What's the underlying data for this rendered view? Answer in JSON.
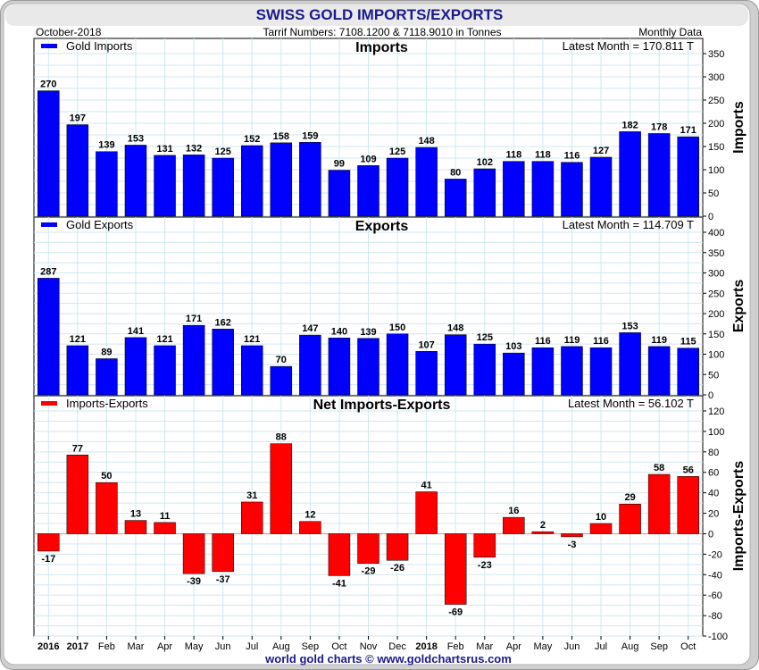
{
  "header": {
    "title": "SWISS GOLD IMPORTS/EXPORTS",
    "date": "October-2018",
    "subtitle": "Tarrif Numbers: 7108.1200 & 7118.9010 in Tonnes",
    "frequency": "Monthly Data"
  },
  "footer": {
    "credit": "world gold charts © www.goldchartsrus.com"
  },
  "colors": {
    "imports": "#0000ff",
    "exports": "#0000ff",
    "net": "#ff0000",
    "title": "#1a1a8c",
    "frame": "#c8c8c8"
  },
  "x_tick_labels": [
    "2016",
    "2017",
    "Feb",
    "Mar",
    "Apr",
    "May",
    "Jun",
    "Jul",
    "Aug",
    "Sep",
    "Oct",
    "Nov",
    "Dec",
    "2018",
    "Feb",
    "Mar",
    "Apr",
    "May",
    "Jun",
    "Jul",
    "Aug",
    "Sep",
    "Oct"
  ],
  "x_tick_bold": [
    true,
    true,
    false,
    false,
    false,
    false,
    false,
    false,
    false,
    false,
    false,
    false,
    false,
    true,
    false,
    false,
    false,
    false,
    false,
    false,
    false,
    false,
    false
  ],
  "chart_data": [
    {
      "type": "bar",
      "title": "Imports",
      "legend": "Gold Imports",
      "legend_position": "top-left",
      "latest": "Latest Month = 170.811 T",
      "ylabel": "Imports",
      "ylim": [
        0,
        350
      ],
      "yticks": [
        0,
        50,
        100,
        150,
        200,
        250,
        300,
        350
      ],
      "grid": true,
      "values": [
        270,
        197,
        139,
        153,
        131,
        132,
        125,
        152,
        158,
        159,
        99,
        109,
        125,
        148,
        80,
        102,
        118,
        118,
        116,
        127,
        182,
        178,
        171
      ],
      "labels": [
        "270",
        "197",
        "139",
        "153",
        "131",
        "132",
        "125",
        "152",
        "158",
        "159",
        "99",
        "109",
        "125",
        "148",
        "80",
        "102",
        "118",
        "118",
        "116",
        "127",
        "182",
        "178",
        "171"
      ]
    },
    {
      "type": "bar",
      "title": "Exports",
      "legend": "Gold Exports",
      "legend_position": "top-left",
      "latest": "Latest Month = 114.709 T",
      "ylabel": "Exports",
      "ylim": [
        0,
        400
      ],
      "yticks": [
        0,
        50,
        100,
        150,
        200,
        250,
        300,
        350,
        400
      ],
      "grid": true,
      "values": [
        287,
        121,
        89,
        141,
        121,
        171,
        162,
        121,
        70,
        147,
        140,
        139,
        150,
        107,
        148,
        125,
        103,
        116,
        119,
        116,
        153,
        119,
        115
      ],
      "labels": [
        "287",
        "121",
        "89",
        "141",
        "121",
        "171",
        "162",
        "121",
        "70",
        "147",
        "140",
        "139",
        "150",
        "107",
        "148",
        "125",
        "103",
        "116",
        "119",
        "116",
        "153",
        "119",
        "115"
      ]
    },
    {
      "type": "bar",
      "title": "Net Imports-Exports",
      "legend": "Imports-Exports",
      "legend_position": "top-left",
      "latest": "Latest Month = 56.102 T",
      "ylabel": "Imports-Exports",
      "ylim": [
        -100,
        120
      ],
      "yticks": [
        -100,
        -80,
        -60,
        -40,
        -20,
        0,
        20,
        40,
        60,
        80,
        100,
        120
      ],
      "grid": true,
      "values": [
        -17,
        77,
        50,
        13,
        11,
        -39,
        -37,
        31,
        88,
        12,
        -41,
        -29,
        -26,
        41,
        -69,
        -23,
        16,
        2,
        -3,
        10,
        29,
        58,
        56
      ],
      "labels": [
        "-17",
        "77",
        "50",
        "13",
        "11",
        "-39",
        "-37",
        "31",
        "88",
        "12",
        "-41",
        "-29",
        "-26",
        "41",
        "-69",
        "-23",
        "16",
        "2",
        "-3",
        "10",
        "29",
        "58",
        "56"
      ]
    }
  ]
}
